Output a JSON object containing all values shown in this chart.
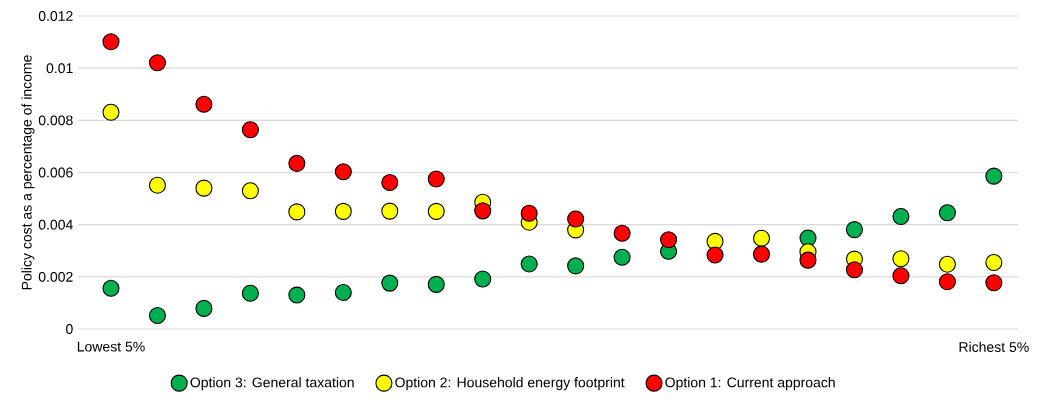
{
  "chart_data": {
    "type": "scatter",
    "ylabel": "Policy cost as a percentage of income",
    "categories": [
      "Lowest 5%",
      null,
      null,
      null,
      null,
      null,
      null,
      null,
      null,
      null,
      null,
      null,
      null,
      null,
      null,
      null,
      null,
      null,
      null,
      "Richest 5%"
    ],
    "series": [
      {
        "name": "Option 3: General taxation",
        "color": "#00b050",
        "values": [
          0.00156,
          0.00052,
          0.00079,
          0.00137,
          0.0013,
          0.0014,
          0.00176,
          0.00171,
          0.00192,
          0.00249,
          0.00242,
          0.00275,
          0.00298,
          null,
          null,
          0.00349,
          0.00381,
          0.00431,
          0.00446,
          0.00586
        ]
      },
      {
        "name": "Option 2: Household energy footprint",
        "color": "#ffff00",
        "values": [
          0.00831,
          0.00551,
          0.0054,
          0.0053,
          0.00449,
          0.00451,
          0.00452,
          0.00451,
          0.00486,
          0.00409,
          0.0038,
          null,
          null,
          0.00336,
          0.00348,
          0.00296,
          0.00268,
          0.00269,
          0.00248,
          0.00255
        ]
      },
      {
        "name": "Option 1: Current approach",
        "color": "#ff0000",
        "values": [
          0.01101,
          0.01021,
          0.00862,
          0.00764,
          0.00635,
          0.00603,
          0.00562,
          0.00575,
          0.00453,
          0.00444,
          0.00422,
          0.00367,
          0.00342,
          0.00284,
          0.00287,
          0.00264,
          0.00227,
          0.00204,
          0.00181,
          0.00177
        ]
      }
    ],
    "ylim": [
      0,
      0.012
    ],
    "yticks": [
      0,
      0.002,
      0.004,
      0.006,
      0.008,
      0.01,
      0.012
    ],
    "grid": "y",
    "legend": "bottom",
    "marker": "circle"
  }
}
